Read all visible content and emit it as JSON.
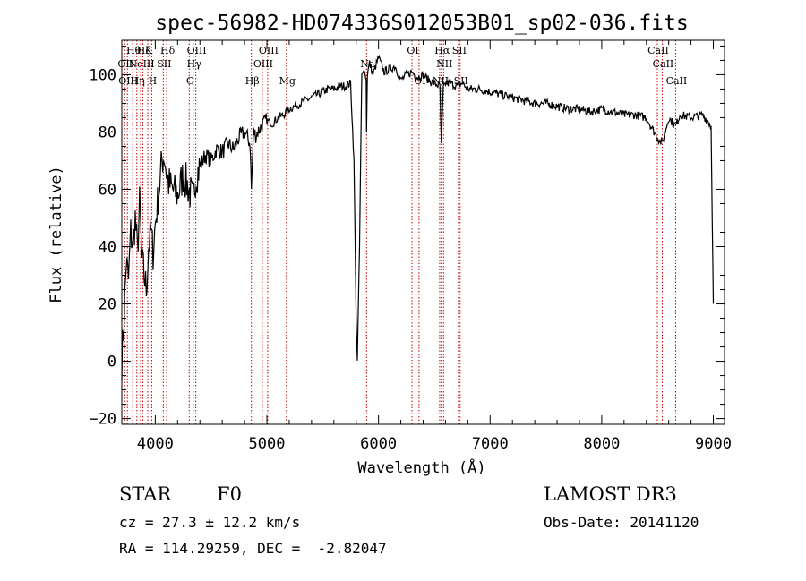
{
  "chart_data": {
    "type": "line",
    "title": "spec-56982-HD074336S012053B01_sp02-036.fits",
    "xlabel": "Wavelength (Å)",
    "ylabel": "Flux (relative)",
    "xlim": [
      3700,
      9100
    ],
    "ylim": [
      -22,
      112
    ],
    "x_ticks": [
      4000,
      5000,
      6000,
      7000,
      8000,
      9000
    ],
    "y_ticks": [
      -20,
      0,
      20,
      40,
      60,
      80,
      100
    ],
    "series": [
      {
        "name": "flux",
        "x": [
          3700,
          3720,
          3740,
          3760,
          3780,
          3800,
          3820,
          3840,
          3860,
          3880,
          3900,
          3920,
          3940,
          3960,
          3980,
          4000,
          4020,
          4040,
          4060,
          4080,
          4100,
          4120,
          4150,
          4200,
          4250,
          4300,
          4340,
          4360,
          4400,
          4450,
          4500,
          4550,
          4600,
          4650,
          4700,
          4750,
          4800,
          4850,
          4861,
          4880,
          4900,
          4950,
          5000,
          5050,
          5100,
          5150,
          5200,
          5250,
          5300,
          5350,
          5400,
          5450,
          5500,
          5550,
          5600,
          5650,
          5700,
          5750,
          5780,
          5800,
          5810,
          5830,
          5850,
          5870,
          5890,
          5893,
          5900,
          5920,
          5950,
          6000,
          6050,
          6100,
          6150,
          6200,
          6250,
          6300,
          6350,
          6400,
          6450,
          6500,
          6550,
          6563,
          6580,
          6600,
          6650,
          6700,
          6750,
          6800,
          6900,
          7000,
          7100,
          7200,
          7300,
          7400,
          7500,
          7600,
          7700,
          7800,
          7900,
          8000,
          8100,
          8200,
          8300,
          8400,
          8498,
          8542,
          8600,
          8662,
          8700,
          8800,
          8900,
          8950,
          8980,
          8990,
          9000
        ],
        "values": [
          0,
          15,
          35,
          28,
          45,
          40,
          50,
          38,
          55,
          35,
          30,
          25,
          40,
          45,
          38,
          48,
          55,
          62,
          70,
          72,
          66,
          62,
          60,
          58,
          65,
          60,
          56,
          64,
          68,
          72,
          70,
          74,
          73,
          76,
          74,
          78,
          80,
          76,
          60,
          80,
          79,
          82,
          84,
          83,
          85,
          86,
          88,
          89,
          90,
          91,
          92,
          93,
          94,
          95,
          95,
          96,
          96,
          97,
          70,
          15,
          0,
          40,
          100,
          102,
          98,
          80,
          100,
          104,
          100,
          106,
          101,
          102,
          103,
          98,
          100,
          101,
          99,
          100,
          98,
          97,
          96,
          75,
          95,
          97,
          97,
          96,
          97,
          95,
          95,
          94,
          93,
          92,
          91,
          90,
          90,
          89,
          88,
          88,
          87,
          88,
          87,
          86,
          86,
          85,
          78,
          76,
          85,
          82,
          86,
          85,
          86,
          84,
          82,
          50,
          20
        ]
      }
    ],
    "spectral_lines": [
      {
        "wl": 3726,
        "name": "OII",
        "row": 2
      },
      {
        "wl": 3750,
        "name": "OIII",
        "row": 3
      },
      {
        "wl": 3798,
        "name": "Hθ",
        "row": 1
      },
      {
        "wl": 3835,
        "name": "Hη",
        "row": 3
      },
      {
        "wl": 3869,
        "name": "NeIII",
        "row": 2
      },
      {
        "wl": 3889,
        "name": "Hζ",
        "row": 1
      },
      {
        "wl": 3933,
        "name": "K",
        "row": 1
      },
      {
        "wl": 3968,
        "name": "H",
        "row": 3
      },
      {
        "wl": 4102,
        "name": "Hδ",
        "row": 1
      },
      {
        "wl": 4072,
        "name": "SII",
        "row": 2
      },
      {
        "wl": 4304,
        "name": "G",
        "row": 3
      },
      {
        "wl": 4340,
        "name": "Hγ",
        "row": 2
      },
      {
        "wl": 4363,
        "name": "OIII",
        "row": 1
      },
      {
        "wl": 4861,
        "name": "Hβ",
        "row": 3
      },
      {
        "wl": 4959,
        "name": "OIII",
        "row": 2
      },
      {
        "wl": 5007,
        "name": "OIII",
        "row": 1
      },
      {
        "wl": 5175,
        "name": "Mg",
        "row": 3
      },
      {
        "wl": 5893,
        "name": "Na",
        "row": 2
      },
      {
        "wl": 6300,
        "name": "OI",
        "row": 1
      },
      {
        "wl": 6363,
        "name": "OI",
        "row": 3
      },
      {
        "wl": 6548,
        "name": "NII",
        "row": 3
      },
      {
        "wl": 6563,
        "name": "Hα",
        "row": 1
      },
      {
        "wl": 6583,
        "name": "NII",
        "row": 2
      },
      {
        "wl": 6716,
        "name": "SII",
        "row": 1
      },
      {
        "wl": 6731,
        "name": "SII",
        "row": 3
      },
      {
        "wl": 8498,
        "name": "CaII",
        "row": 1
      },
      {
        "wl": 8542,
        "name": "CaII",
        "row": 2
      },
      {
        "wl": 8662,
        "name": "CaII",
        "row": 3
      }
    ]
  },
  "info": {
    "object_type": "STAR",
    "subclass": "F0",
    "survey": "LAMOST DR3",
    "cz_text": "cz = 27.3 ± 12.2 km/s",
    "obs_date": "Obs-Date: 20141120",
    "radec_text": "RA = 114.29259, DEC =  -2.82047"
  }
}
